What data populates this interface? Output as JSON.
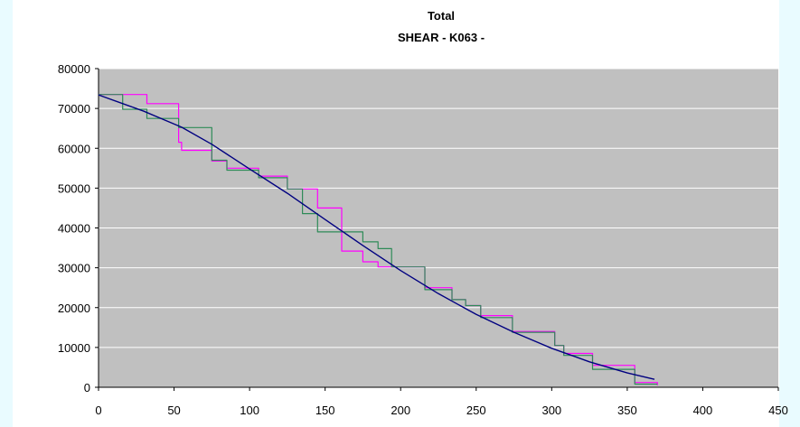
{
  "chart_data": {
    "type": "line",
    "title": "Total",
    "subtitle": "SHEAR - K063 -",
    "xlabel": "",
    "ylabel": "",
    "xlim": [
      0,
      450
    ],
    "ylim": [
      0,
      80000
    ],
    "x_ticks": [
      0,
      50,
      100,
      150,
      200,
      250,
      300,
      350,
      400,
      450
    ],
    "y_ticks": [
      0,
      10000,
      20000,
      30000,
      40000,
      50000,
      60000,
      70000,
      80000
    ],
    "grid": true,
    "plot_background": "#c0c0c0",
    "series": [
      {
        "color": "#ff00ff",
        "step": true,
        "points": [
          [
            0,
            73500
          ],
          [
            32,
            73500
          ],
          [
            32,
            71200
          ],
          [
            53,
            71200
          ],
          [
            53,
            61500
          ],
          [
            55,
            61500
          ],
          [
            55,
            59500
          ],
          [
            75,
            59500
          ],
          [
            75,
            56800
          ],
          [
            85,
            56800
          ],
          [
            85,
            55000
          ],
          [
            106,
            55000
          ],
          [
            106,
            53000
          ],
          [
            125,
            53000
          ],
          [
            125,
            49800
          ],
          [
            145,
            49800
          ],
          [
            145,
            45000
          ],
          [
            161,
            45000
          ],
          [
            161,
            34200
          ],
          [
            175,
            34200
          ],
          [
            175,
            31500
          ],
          [
            185,
            31500
          ],
          [
            185,
            30200
          ],
          [
            216,
            30200
          ],
          [
            216,
            25000
          ],
          [
            234,
            25000
          ],
          [
            234,
            22000
          ],
          [
            243,
            22000
          ],
          [
            243,
            20500
          ],
          [
            253,
            20500
          ],
          [
            253,
            18000
          ],
          [
            274,
            18000
          ],
          [
            274,
            14000
          ],
          [
            302,
            14000
          ],
          [
            302,
            10500
          ],
          [
            308,
            10500
          ],
          [
            308,
            8500
          ],
          [
            327,
            8500
          ],
          [
            327,
            5500
          ],
          [
            355,
            5500
          ],
          [
            355,
            1200
          ],
          [
            370,
            1200
          ],
          [
            370,
            500
          ]
        ]
      },
      {
        "color": "#2e8b57",
        "step": true,
        "points": [
          [
            0,
            73500
          ],
          [
            16,
            73500
          ],
          [
            16,
            69800
          ],
          [
            32,
            69800
          ],
          [
            32,
            67500
          ],
          [
            53,
            67500
          ],
          [
            53,
            65200
          ],
          [
            75,
            65200
          ],
          [
            75,
            57000
          ],
          [
            85,
            57000
          ],
          [
            85,
            54500
          ],
          [
            106,
            54500
          ],
          [
            106,
            52600
          ],
          [
            125,
            52600
          ],
          [
            125,
            49800
          ],
          [
            135,
            49800
          ],
          [
            135,
            43600
          ],
          [
            145,
            43600
          ],
          [
            145,
            39000
          ],
          [
            175,
            39000
          ],
          [
            175,
            36500
          ],
          [
            185,
            36500
          ],
          [
            185,
            34800
          ],
          [
            194,
            34800
          ],
          [
            194,
            30200
          ],
          [
            216,
            30200
          ],
          [
            216,
            24500
          ],
          [
            234,
            24500
          ],
          [
            234,
            22000
          ],
          [
            243,
            22000
          ],
          [
            243,
            20500
          ],
          [
            253,
            20500
          ],
          [
            253,
            17500
          ],
          [
            274,
            17500
          ],
          [
            274,
            13800
          ],
          [
            302,
            13800
          ],
          [
            302,
            10500
          ],
          [
            308,
            10500
          ],
          [
            308,
            8000
          ],
          [
            327,
            8000
          ],
          [
            327,
            4500
          ],
          [
            355,
            4500
          ],
          [
            355,
            800
          ],
          [
            370,
            800
          ]
        ]
      },
      {
        "color": "#000080",
        "step": false,
        "points": [
          [
            0,
            73400
          ],
          [
            30,
            69300
          ],
          [
            55,
            65300
          ],
          [
            75,
            61000
          ],
          [
            100,
            54800
          ],
          [
            125,
            48700
          ],
          [
            150,
            42100
          ],
          [
            175,
            35600
          ],
          [
            200,
            29300
          ],
          [
            225,
            23500
          ],
          [
            250,
            18300
          ],
          [
            275,
            13800
          ],
          [
            300,
            9800
          ],
          [
            325,
            6400
          ],
          [
            350,
            3600
          ],
          [
            368,
            2000
          ]
        ]
      }
    ]
  }
}
